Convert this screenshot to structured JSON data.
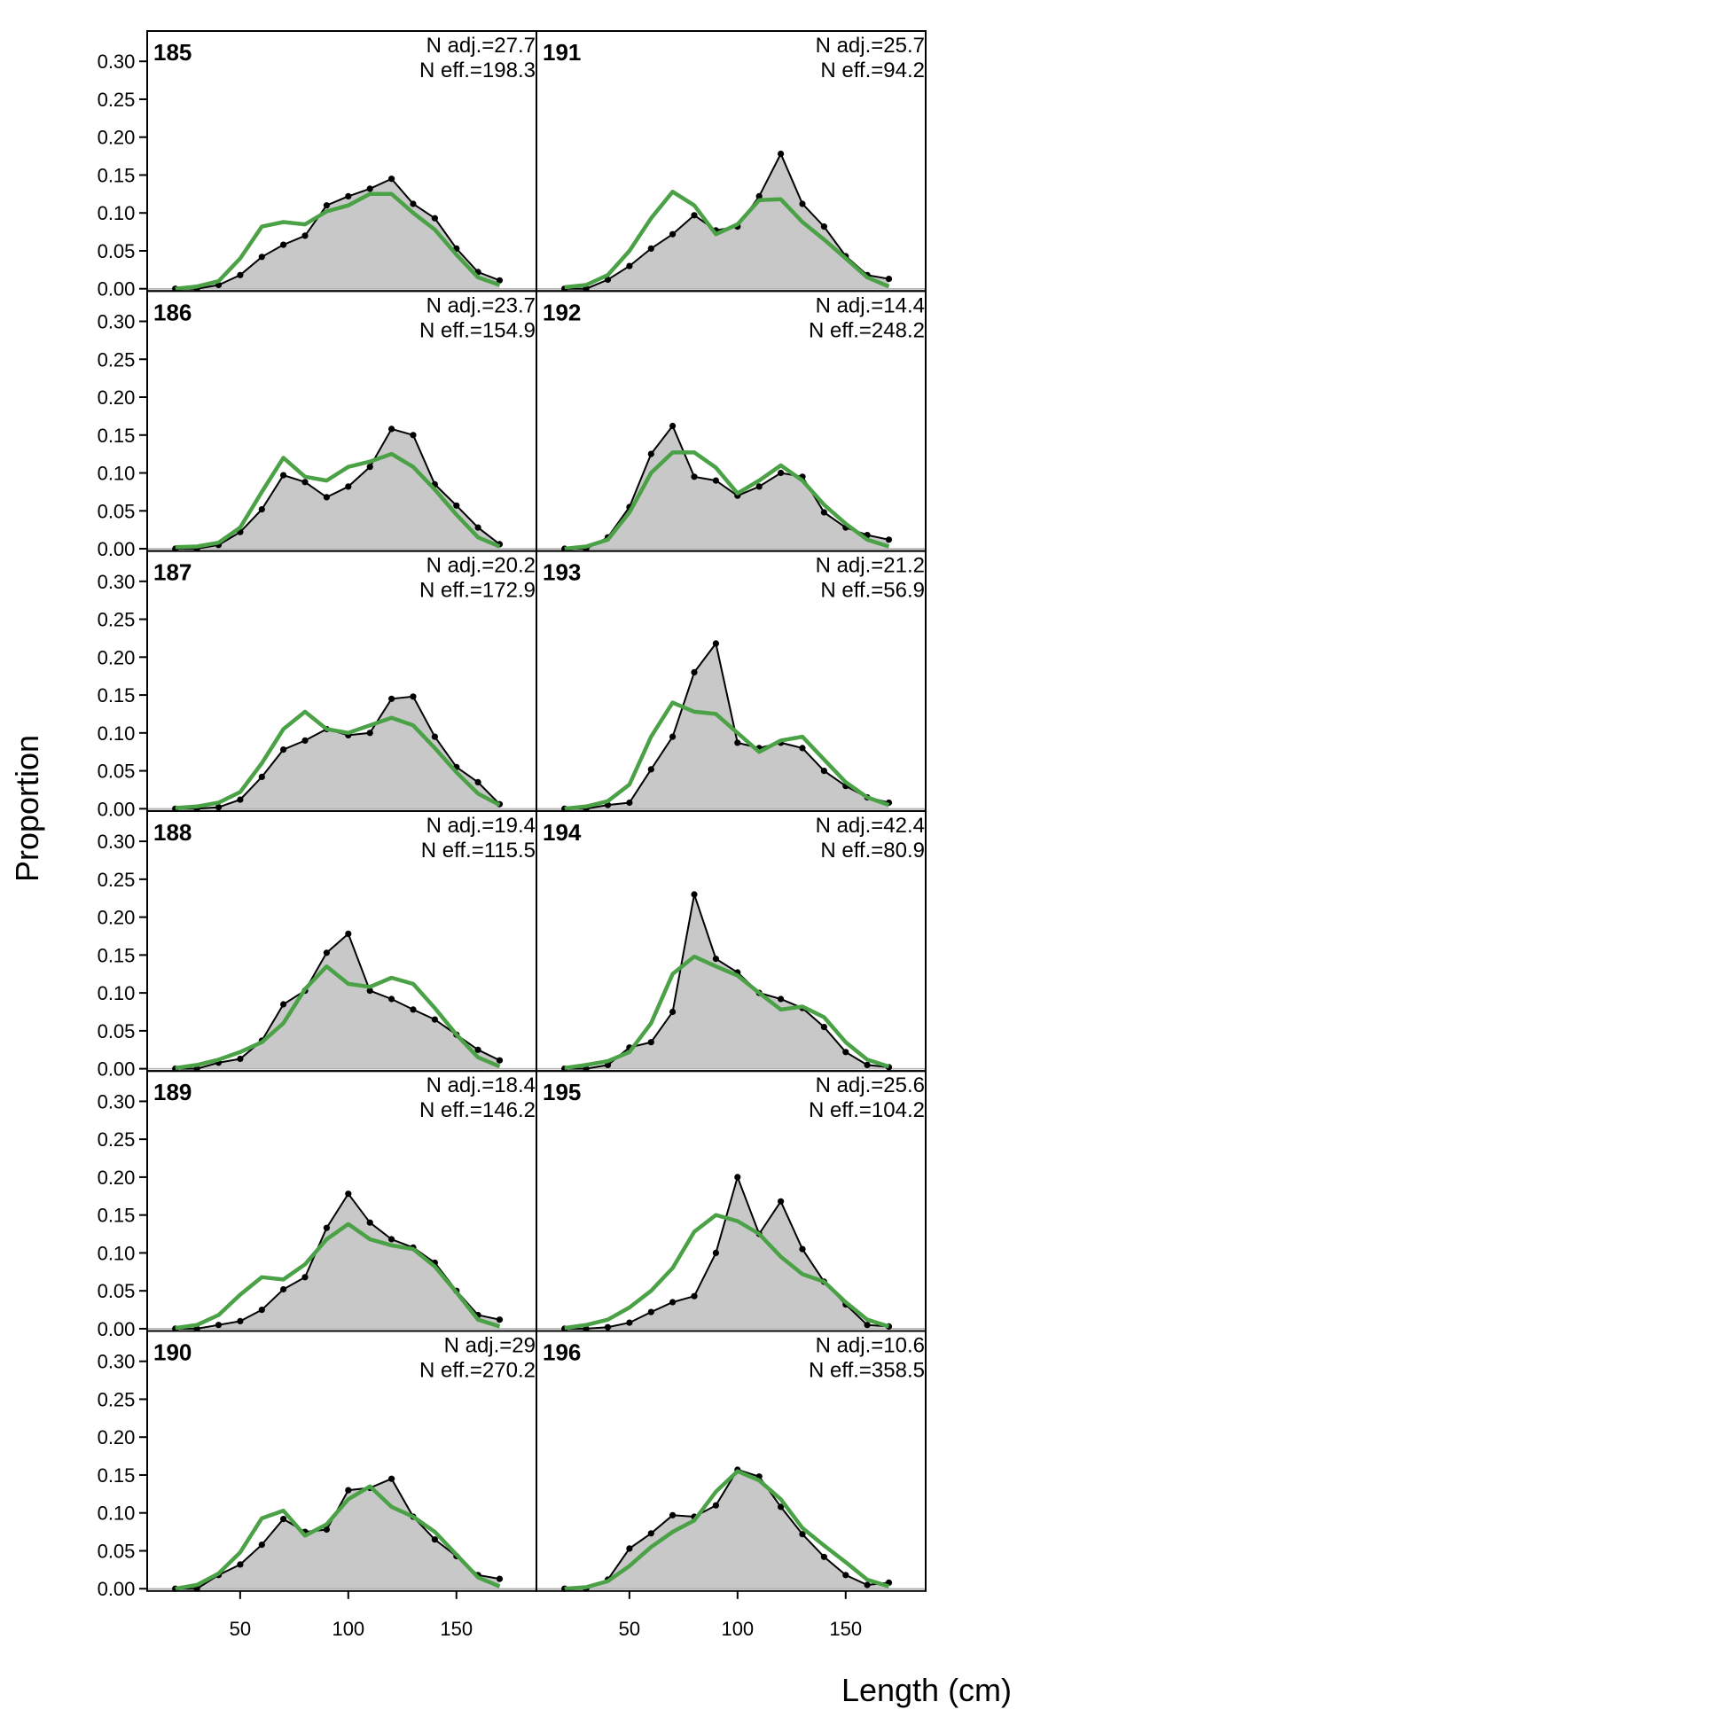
{
  "chart_data": {
    "type": "line",
    "xlabel": "Length (cm)",
    "ylabel": "Proportion",
    "x": [
      20,
      30,
      40,
      50,
      60,
      70,
      80,
      90,
      100,
      110,
      120,
      130,
      140,
      150,
      160,
      170
    ],
    "xlim": [
      7,
      187
    ],
    "ylim": [
      -0.003,
      0.34
    ],
    "x_ticks": [
      50,
      100,
      150
    ],
    "y_ticks": [
      "0.00",
      "0.05",
      "0.10",
      "0.15",
      "0.20",
      "0.25",
      "0.30"
    ],
    "observed_fill_color": "#c8c8c8",
    "observed_line_color": "#000000",
    "expected_line_color": "#4aa146",
    "panels": [
      {
        "label": "185",
        "n_adj": "N adj.=27.7",
        "n_eff": "N eff.=198.3",
        "observed": [
          0.0,
          0.0,
          0.005,
          0.018,
          0.042,
          0.058,
          0.07,
          0.11,
          0.122,
          0.132,
          0.145,
          0.112,
          0.093,
          0.053,
          0.022,
          0.011
        ],
        "expected": [
          0.0,
          0.003,
          0.01,
          0.04,
          0.082,
          0.088,
          0.085,
          0.102,
          0.11,
          0.125,
          0.125,
          0.1,
          0.078,
          0.045,
          0.015,
          0.005
        ]
      },
      {
        "label": "186",
        "n_adj": "N adj.=23.7",
        "n_eff": "N eff.=154.9",
        "observed": [
          0.0,
          0.0,
          0.005,
          0.022,
          0.052,
          0.097,
          0.088,
          0.068,
          0.082,
          0.108,
          0.158,
          0.15,
          0.085,
          0.057,
          0.028,
          0.006
        ],
        "expected": [
          0.002,
          0.003,
          0.008,
          0.028,
          0.075,
          0.12,
          0.095,
          0.09,
          0.108,
          0.115,
          0.125,
          0.108,
          0.078,
          0.045,
          0.015,
          0.003
        ]
      },
      {
        "label": "187",
        "n_adj": "N adj.=20.2",
        "n_eff": "N eff.=172.9",
        "observed": [
          0.0,
          0.0,
          0.002,
          0.012,
          0.042,
          0.078,
          0.09,
          0.105,
          0.097,
          0.1,
          0.145,
          0.148,
          0.095,
          0.055,
          0.035,
          0.006
        ],
        "expected": [
          0.001,
          0.003,
          0.008,
          0.022,
          0.06,
          0.105,
          0.128,
          0.105,
          0.1,
          0.11,
          0.12,
          0.11,
          0.08,
          0.048,
          0.02,
          0.005
        ]
      },
      {
        "label": "188",
        "n_adj": "N adj.=19.4",
        "n_eff": "N eff.=115.5",
        "observed": [
          0.0,
          0.0,
          0.008,
          0.013,
          0.037,
          0.085,
          0.103,
          0.153,
          0.178,
          0.103,
          0.092,
          0.078,
          0.065,
          0.045,
          0.025,
          0.011
        ],
        "expected": [
          0.001,
          0.005,
          0.012,
          0.022,
          0.035,
          0.06,
          0.105,
          0.135,
          0.112,
          0.108,
          0.12,
          0.112,
          0.08,
          0.045,
          0.015,
          0.003
        ]
      },
      {
        "label": "189",
        "n_adj": "N adj.=18.4",
        "n_eff": "N eff.=146.2",
        "observed": [
          0.0,
          0.0,
          0.005,
          0.01,
          0.025,
          0.052,
          0.068,
          0.133,
          0.178,
          0.14,
          0.118,
          0.107,
          0.087,
          0.05,
          0.018,
          0.012
        ],
        "expected": [
          0.001,
          0.005,
          0.018,
          0.045,
          0.068,
          0.065,
          0.085,
          0.118,
          0.138,
          0.118,
          0.11,
          0.105,
          0.082,
          0.048,
          0.012,
          0.003
        ]
      },
      {
        "label": "190",
        "n_adj": "N adj.=29",
        "n_eff": "N eff.=270.2",
        "observed": [
          0.0,
          0.0,
          0.018,
          0.032,
          0.058,
          0.092,
          0.075,
          0.078,
          0.13,
          0.133,
          0.145,
          0.095,
          0.065,
          0.043,
          0.018,
          0.013
        ],
        "expected": [
          0.0,
          0.005,
          0.02,
          0.048,
          0.093,
          0.103,
          0.07,
          0.085,
          0.118,
          0.135,
          0.108,
          0.095,
          0.075,
          0.045,
          0.015,
          0.003
        ]
      },
      {
        "label": "191",
        "n_adj": "N adj.=25.7",
        "n_eff": "N eff.=94.2",
        "observed": [
          0.0,
          0.0,
          0.012,
          0.03,
          0.053,
          0.072,
          0.097,
          0.077,
          0.082,
          0.122,
          0.178,
          0.112,
          0.082,
          0.043,
          0.018,
          0.013
        ],
        "expected": [
          0.002,
          0.005,
          0.018,
          0.05,
          0.093,
          0.128,
          0.11,
          0.072,
          0.085,
          0.117,
          0.118,
          0.088,
          0.065,
          0.04,
          0.015,
          0.003
        ]
      },
      {
        "label": "192",
        "n_adj": "N adj.=14.4",
        "n_eff": "N eff.=248.2",
        "observed": [
          0.0,
          0.0,
          0.015,
          0.055,
          0.125,
          0.162,
          0.095,
          0.09,
          0.07,
          0.082,
          0.1,
          0.095,
          0.048,
          0.028,
          0.018,
          0.012
        ],
        "expected": [
          0.0,
          0.003,
          0.012,
          0.048,
          0.1,
          0.127,
          0.127,
          0.107,
          0.073,
          0.09,
          0.11,
          0.09,
          0.058,
          0.033,
          0.012,
          0.003
        ]
      },
      {
        "label": "193",
        "n_adj": "N adj.=21.2",
        "n_eff": "N eff.=56.9",
        "observed": [
          0.0,
          0.0,
          0.005,
          0.008,
          0.052,
          0.095,
          0.18,
          0.218,
          0.087,
          0.08,
          0.087,
          0.08,
          0.05,
          0.03,
          0.015,
          0.008
        ],
        "expected": [
          0.0,
          0.003,
          0.01,
          0.032,
          0.095,
          0.14,
          0.128,
          0.125,
          0.1,
          0.075,
          0.09,
          0.095,
          0.065,
          0.035,
          0.015,
          0.005
        ]
      },
      {
        "label": "194",
        "n_adj": "N adj.=42.4",
        "n_eff": "N eff.=80.9",
        "observed": [
          0.0,
          0.0,
          0.005,
          0.028,
          0.035,
          0.075,
          0.23,
          0.145,
          0.127,
          0.1,
          0.092,
          0.08,
          0.055,
          0.022,
          0.005,
          0.002
        ],
        "expected": [
          0.001,
          0.005,
          0.01,
          0.022,
          0.06,
          0.125,
          0.148,
          0.135,
          0.123,
          0.1,
          0.078,
          0.082,
          0.068,
          0.035,
          0.012,
          0.003
        ]
      },
      {
        "label": "195",
        "n_adj": "N adj.=25.6",
        "n_eff": "N eff.=104.2",
        "observed": [
          0.0,
          0.0,
          0.002,
          0.008,
          0.022,
          0.035,
          0.043,
          0.1,
          0.2,
          0.125,
          0.168,
          0.105,
          0.062,
          0.032,
          0.005,
          0.003
        ],
        "expected": [
          0.001,
          0.005,
          0.012,
          0.028,
          0.05,
          0.08,
          0.128,
          0.15,
          0.142,
          0.125,
          0.095,
          0.072,
          0.062,
          0.035,
          0.012,
          0.003
        ]
      },
      {
        "label": "196",
        "n_adj": "N adj.=10.6",
        "n_eff": "N eff.=358.5",
        "observed": [
          0.0,
          0.0,
          0.012,
          0.053,
          0.073,
          0.097,
          0.095,
          0.11,
          0.157,
          0.148,
          0.108,
          0.072,
          0.042,
          0.018,
          0.005,
          0.008
        ],
        "expected": [
          0.0,
          0.002,
          0.01,
          0.03,
          0.055,
          0.075,
          0.09,
          0.128,
          0.155,
          0.143,
          0.118,
          0.08,
          0.057,
          0.035,
          0.012,
          0.003
        ]
      }
    ]
  }
}
